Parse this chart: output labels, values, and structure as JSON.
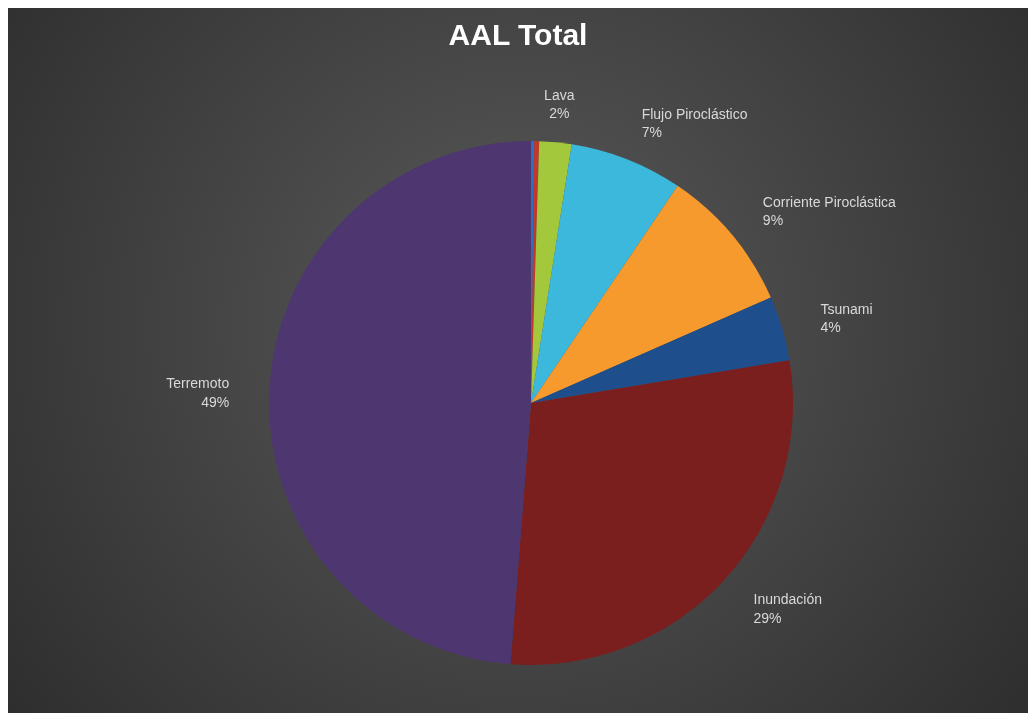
{
  "chart_data": {
    "type": "pie",
    "title": "AAL Total",
    "categories": [
      null,
      null,
      "Lava",
      "Flujo Piroclástico",
      "Corriente Piroclástica",
      "Tsunami",
      "Inundación",
      "Terremoto"
    ],
    "values": [
      0.2,
      0.3,
      2,
      7,
      9,
      4,
      29,
      49
    ],
    "value_labels": [
      null,
      null,
      "2%",
      "7%",
      "9%",
      "4%",
      "29%",
      "49%"
    ],
    "colors": [
      "#2f6fbf",
      "#c0392b",
      "#a4c83c",
      "#3cb8dc",
      "#f79a2e",
      "#1f4e8c",
      "#7b1e1e",
      "#4e3670"
    ],
    "legend": false
  }
}
